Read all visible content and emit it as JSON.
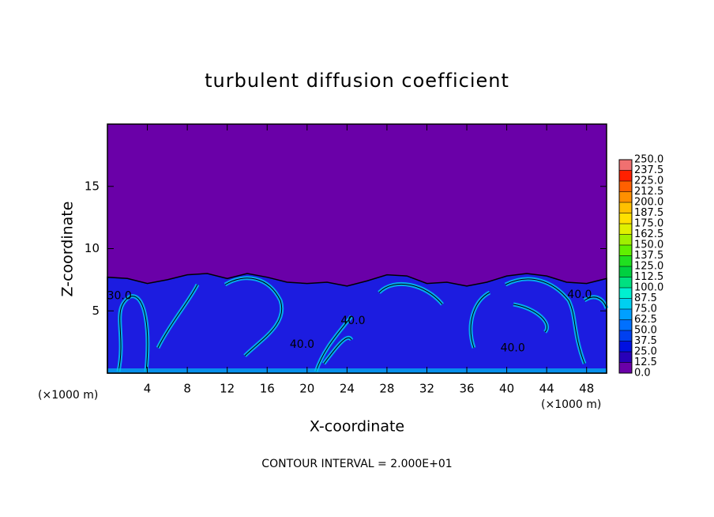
{
  "chart_data": {
    "type": "contour",
    "title": "turbulent diffusion coefficient",
    "x_label": "X-coordinate",
    "y_label": "Z-coordinate",
    "x_unit": "(×1000 m)",
    "y_unit": "(×1000 m)",
    "note": "CONTOUR INTERVAL = 2.000E+01",
    "xlim": [
      0,
      50
    ],
    "ylim": [
      0,
      20
    ],
    "xticks": [
      4,
      8,
      12,
      16,
      20,
      24,
      28,
      32,
      36,
      40,
      44,
      48
    ],
    "yticks": [
      5,
      10,
      15
    ],
    "background_color": "#6a00a8",
    "field_color": "#1c1ce0",
    "mixed_layer_top": {
      "x": [
        0,
        2,
        4,
        6,
        8,
        10,
        12,
        14,
        16,
        18,
        20,
        22,
        24,
        26,
        28,
        30,
        32,
        34,
        36,
        38,
        40,
        42,
        44,
        46,
        48,
        50
      ],
      "z": [
        7.7,
        7.6,
        7.2,
        7.5,
        7.9,
        8.0,
        7.6,
        8.0,
        7.7,
        7.3,
        7.2,
        7.3,
        7.0,
        7.4,
        7.9,
        7.8,
        7.2,
        7.3,
        7.0,
        7.3,
        7.8,
        8.0,
        7.8,
        7.3,
        7.2,
        7.6
      ]
    },
    "contour_labels": {
      "x": [
        1.2,
        19.5,
        24.6,
        40.6,
        47.3
      ],
      "z": [
        6.2,
        2.3,
        4.2,
        2.0,
        6.3
      ],
      "labels": [
        "30.0",
        "40.0",
        "40.0",
        "40.0",
        "40.0"
      ]
    },
    "colorbar": {
      "ticks": [
        {
          "value": 0,
          "label": "0.0"
        },
        12.5,
        {
          "value": 25,
          "label": "25.0"
        },
        37.5,
        {
          "value": 50,
          "label": "50.0"
        },
        62.5,
        {
          "value": 75,
          "label": "75.0"
        },
        87.5,
        {
          "value": 100,
          "label": "100.0"
        },
        112.5,
        {
          "value": 125,
          "label": "125.0"
        },
        137.5,
        {
          "value": 150,
          "label": "150.0"
        },
        162.5,
        {
          "value": 175,
          "label": "175.0"
        },
        187.5,
        {
          "value": 200,
          "label": "200.0"
        },
        212.5,
        {
          "value": 225,
          "label": "225.0"
        },
        237.5,
        {
          "value": 250,
          "label": "250.0"
        }
      ],
      "colors": [
        "#6a00a8",
        "#2800b8",
        "#0010e0",
        "#0040f0",
        "#0070ff",
        "#00a0ff",
        "#00d0f0",
        "#00f0d0",
        "#00e080",
        "#00d040",
        "#20e020",
        "#60f000",
        "#a0f000",
        "#e0f000",
        "#ffe000",
        "#ffc000",
        "#ff9000",
        "#ff6000",
        "#ff2000",
        "#f07070"
      ]
    }
  }
}
